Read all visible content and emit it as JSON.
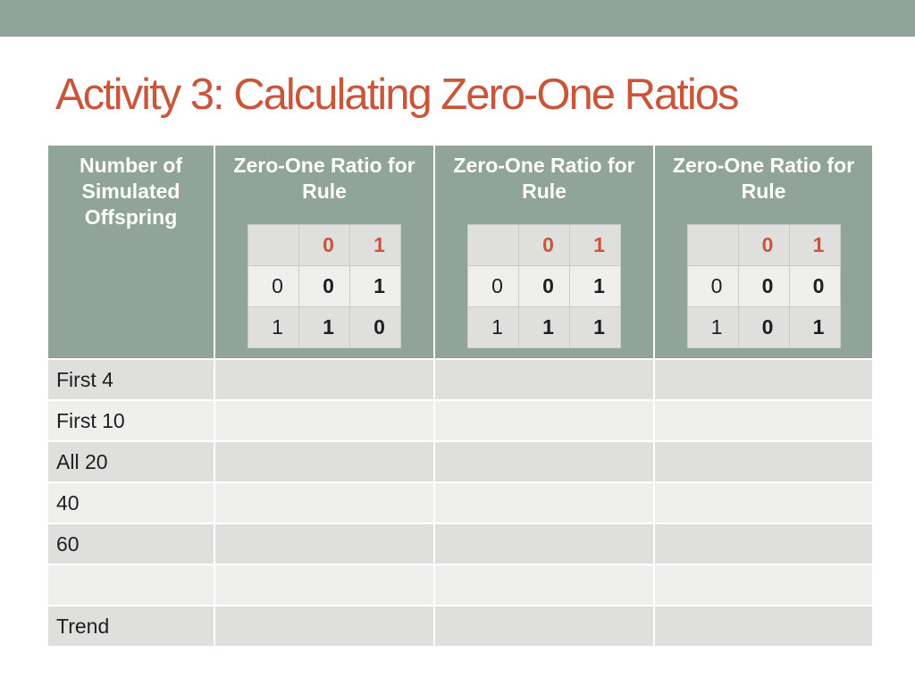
{
  "slide": {
    "title": "Activity 3: Calculating Zero-One Ratios"
  },
  "colors": {
    "band": "#90a499",
    "title": "#c9553a",
    "accent_label": "#c9553a",
    "row_odd": "#dfe0de",
    "row_even": "#eff0ee"
  },
  "table": {
    "first_header": "Number of Simulated Offspring",
    "rule_header": "Zero-One Ratio for Rule",
    "rules": [
      {
        "col_labels": [
          "0",
          "1"
        ],
        "rows": [
          {
            "label": "0",
            "values": [
              "0",
              "1"
            ]
          },
          {
            "label": "1",
            "values": [
              "1",
              "0"
            ]
          }
        ]
      },
      {
        "col_labels": [
          "0",
          "1"
        ],
        "rows": [
          {
            "label": "0",
            "values": [
              "0",
              "1"
            ]
          },
          {
            "label": "1",
            "values": [
              "1",
              "1"
            ]
          }
        ]
      },
      {
        "col_labels": [
          "0",
          "1"
        ],
        "rows": [
          {
            "label": "0",
            "values": [
              "0",
              "0"
            ]
          },
          {
            "label": "1",
            "values": [
              "0",
              "1"
            ]
          }
        ]
      }
    ],
    "rows": [
      {
        "label": "First 4"
      },
      {
        "label": "First 10"
      },
      {
        "label": "All 20"
      },
      {
        "label": "40"
      },
      {
        "label": "60"
      },
      {
        "label": ""
      },
      {
        "label": "Trend"
      }
    ]
  }
}
